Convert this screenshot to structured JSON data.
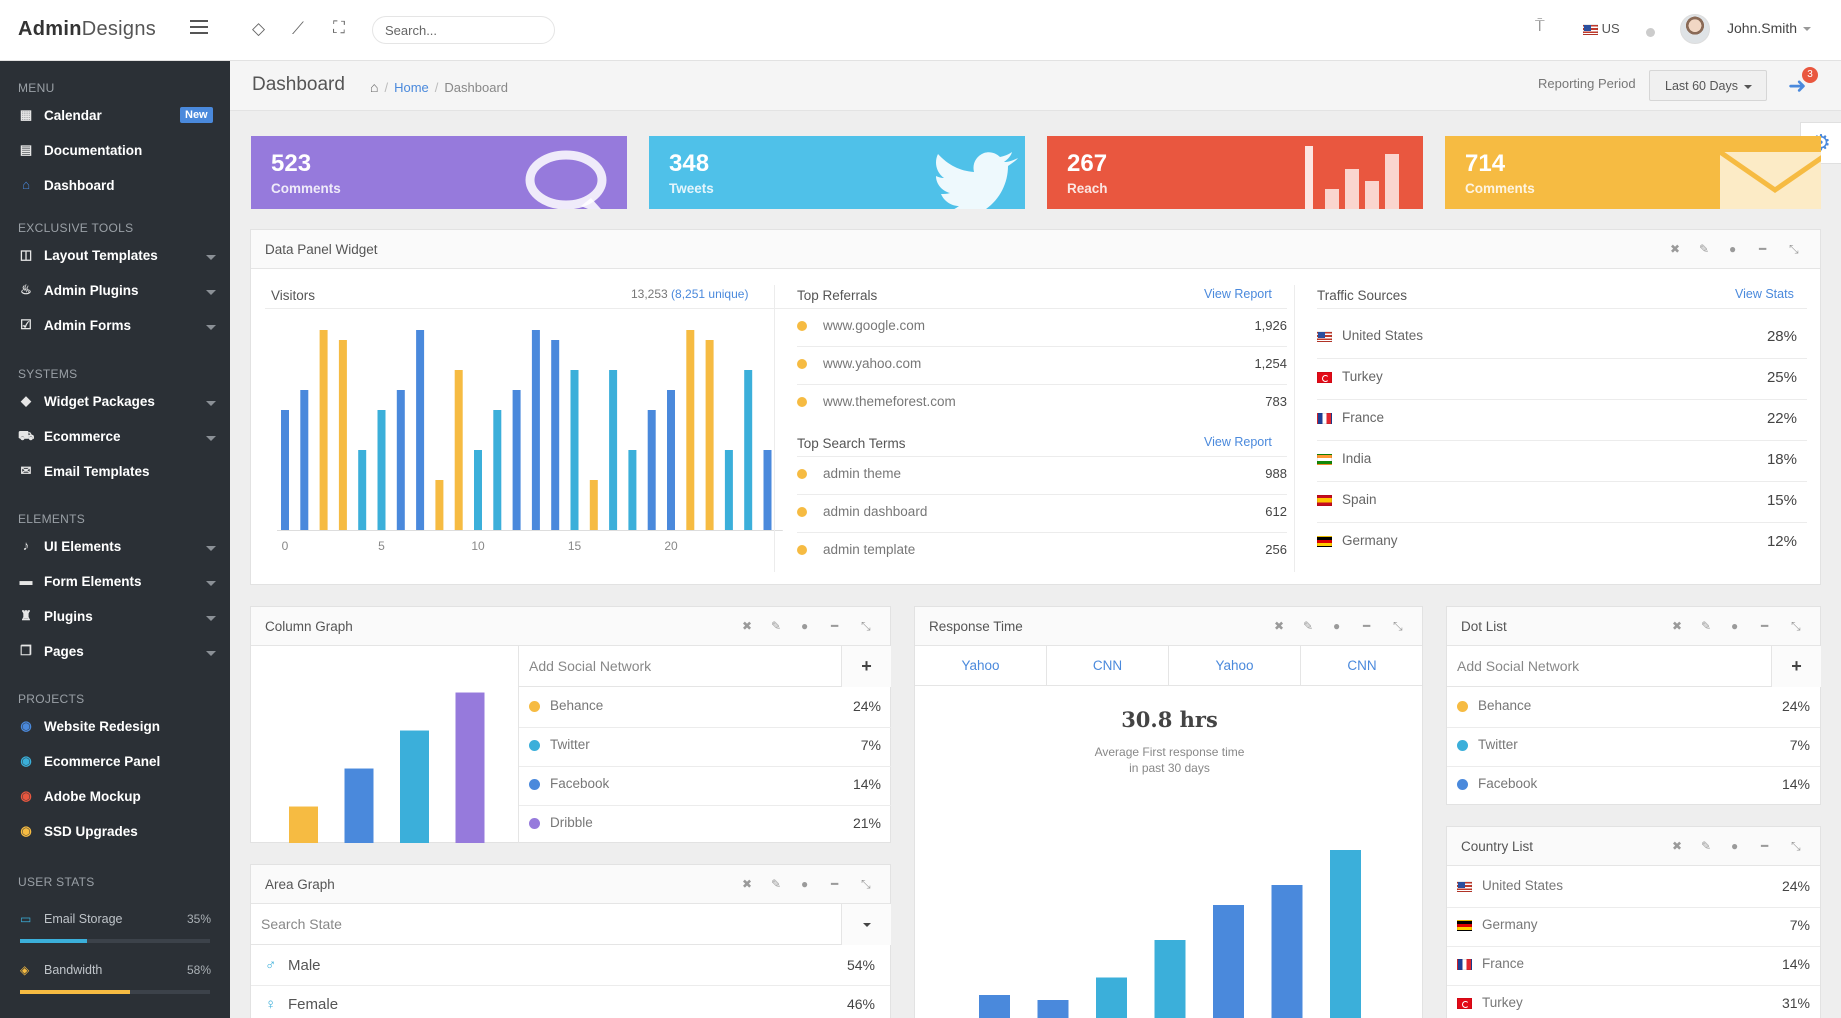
{
  "header": {
    "brand_strong": "Admin",
    "brand_rest": "Designs",
    "search_placeholder": "Search...",
    "language": "US",
    "username": "John.Smith"
  },
  "sidebar": {
    "sections": {
      "menu": "MENU",
      "exclusive": "EXCLUSIVE TOOLS",
      "systems": "SYSTEMS",
      "elements": "ELEMENTS",
      "projects": "PROJECTS",
      "user_stats": "USER STATS"
    },
    "menu": [
      {
        "label": "Calendar",
        "icon": "calendar-icon",
        "badge": "New"
      },
      {
        "label": "Documentation",
        "icon": "book-icon"
      },
      {
        "label": "Dashboard",
        "icon": "home-icon"
      }
    ],
    "exclusive": [
      {
        "label": "Layout Templates",
        "icon": "columns-icon"
      },
      {
        "label": "Admin Plugins",
        "icon": "fire-icon"
      },
      {
        "label": "Admin Forms",
        "icon": "check-square-icon"
      }
    ],
    "systems": [
      {
        "label": "Widget Packages",
        "icon": "diamond-icon"
      },
      {
        "label": "Ecommerce",
        "icon": "cart-icon"
      },
      {
        "label": "Email Templates",
        "icon": "envelope-icon"
      }
    ],
    "elements": [
      {
        "label": "UI Elements",
        "icon": "bell-icon"
      },
      {
        "label": "Form Elements",
        "icon": "hdd-icon"
      },
      {
        "label": "Plugins",
        "icon": "chess-icon"
      },
      {
        "label": "Pages",
        "icon": "files-icon"
      }
    ],
    "projects": [
      {
        "label": "Website Redesign",
        "color": "#4a89dc"
      },
      {
        "label": "Ecommerce Panel",
        "color": "#3bafda"
      },
      {
        "label": "Adobe Mockup",
        "color": "#e9573f"
      },
      {
        "label": "SSD Upgrades",
        "color": "#f6bb42"
      }
    ],
    "stats": [
      {
        "label": "Email Storage",
        "pct": "35%",
        "value": 0.35,
        "color": "#3bafda",
        "icon": "inbox-icon"
      },
      {
        "label": "Bandwidth",
        "pct": "58%",
        "value": 0.58,
        "color": "#f6bb42",
        "icon": "shield-icon"
      }
    ]
  },
  "topbar": {
    "title": "Dashboard",
    "crumb_home": "Home",
    "crumb_current": "Dashboard",
    "reporting_label": "Reporting Period",
    "reporting_value": "Last 60 Days",
    "notif_count": "3"
  },
  "tiles": [
    {
      "num": "523",
      "label": "Comments",
      "color": "#967adc",
      "icon": "comment-bubble-icon"
    },
    {
      "num": "348",
      "label": "Tweets",
      "color": "#4fc1e9",
      "icon": "twitter-bird-icon"
    },
    {
      "num": "267",
      "label": "Reach",
      "color": "#e9573f",
      "icon": "bar-chart-icon"
    },
    {
      "num": "714",
      "label": "Comments",
      "color": "#f6bb42",
      "icon": "envelope-icon"
    }
  ],
  "data_panel": {
    "title": "Data Panel Widget",
    "visitors_label": "Visitors",
    "visitors_total": "13,253",
    "visitors_unique": "(8,251 unique)",
    "referrals_title": "Top Referrals",
    "referrals_link": "View Report",
    "referrals": [
      {
        "site": "www.google.com",
        "value": "1,926"
      },
      {
        "site": "www.yahoo.com",
        "value": "1,254"
      },
      {
        "site": "www.themeforest.com",
        "value": "783"
      }
    ],
    "search_title": "Top Search Terms",
    "search_link": "View Report",
    "search_terms": [
      {
        "term": "admin theme",
        "value": "988"
      },
      {
        "term": "admin dashboard",
        "value": "612"
      },
      {
        "term": "admin template",
        "value": "256"
      }
    ],
    "traffic_title": "Traffic Sources",
    "traffic_link": "View Stats",
    "traffic": [
      {
        "country": "United States",
        "pct": "28%",
        "flag": "f-us"
      },
      {
        "country": "Turkey",
        "pct": "25%",
        "flag": "f-tr"
      },
      {
        "country": "France",
        "pct": "22%",
        "flag": "f-fr"
      },
      {
        "country": "India",
        "pct": "18%",
        "flag": "f-in"
      },
      {
        "country": "Spain",
        "pct": "15%",
        "flag": "f-es"
      },
      {
        "country": "Germany",
        "pct": "12%",
        "flag": "f-de"
      }
    ]
  },
  "chart_data": [
    {
      "type": "bar",
      "x_ticks": [
        "0",
        "5",
        "10",
        "15",
        "20"
      ],
      "ylim": [
        0,
        10
      ],
      "values": [
        6,
        7,
        10,
        9.5,
        4,
        6,
        7,
        10,
        2.5,
        8,
        4,
        6,
        7,
        10,
        9.5,
        8,
        2.5,
        8,
        4,
        6,
        7,
        10,
        9.5,
        4,
        8,
        4
      ],
      "colors": [
        "#4a89dc",
        "#4a89dc",
        "#f6bb42",
        "#f6bb42",
        "#3bafda",
        "#3bafda",
        "#4a89dc",
        "#4a89dc",
        "#f6bb42",
        "#f6bb42",
        "#3bafda",
        "#3bafda",
        "#4a89dc",
        "#4a89dc",
        "#4a89dc",
        "#3bafda",
        "#f6bb42",
        "#3bafda",
        "#3bafda",
        "#4a89dc",
        "#4a89dc",
        "#f6bb42",
        "#f6bb42",
        "#3bafda",
        "#3bafda",
        "#4a89dc"
      ]
    },
    {
      "type": "bar",
      "values": [
        24,
        49,
        74,
        99
      ],
      "ylim": [
        0,
        100
      ],
      "colors": [
        "#f6bb42",
        "#4a89dc",
        "#3bafda",
        "#967adc"
      ]
    },
    {
      "type": "bar",
      "values": [
        12,
        10,
        19,
        34,
        48,
        56,
        70
      ],
      "ylim": [
        0,
        80
      ],
      "colors": [
        "#4a89dc",
        "#4a89dc",
        "#3bafda",
        "#3bafda",
        "#4a89dc",
        "#4a89dc",
        "#3bafda"
      ]
    }
  ],
  "column_graph": {
    "title": "Column Graph",
    "add_placeholder": "Add Social Network",
    "items": [
      {
        "name": "Behance",
        "pct": "24%",
        "color": "#f6bb42"
      },
      {
        "name": "Twitter",
        "pct": "7%",
        "color": "#3bafda"
      },
      {
        "name": "Facebook",
        "pct": "14%",
        "color": "#4a89dc"
      },
      {
        "name": "Dribble",
        "pct": "21%",
        "color": "#967adc"
      }
    ]
  },
  "area_graph": {
    "title": "Area Graph",
    "search_placeholder": "Search State",
    "items": [
      {
        "name": "Male",
        "pct": "54%"
      },
      {
        "name": "Female",
        "pct": "46%"
      }
    ]
  },
  "response_time": {
    "title": "Response Time",
    "tabs": [
      "Yahoo",
      "CNN",
      "Yahoo",
      "CNN"
    ],
    "value": "30.8 hrs",
    "desc1": "Average First response time",
    "desc2": "in past 30 days"
  },
  "dot_list": {
    "title": "Dot List",
    "add_placeholder": "Add Social Network",
    "items": [
      {
        "name": "Behance",
        "pct": "24%",
        "color": "#f6bb42"
      },
      {
        "name": "Twitter",
        "pct": "7%",
        "color": "#3bafda"
      },
      {
        "name": "Facebook",
        "pct": "14%",
        "color": "#4a89dc"
      }
    ]
  },
  "country_list": {
    "title": "Country List",
    "items": [
      {
        "country": "United States",
        "pct": "24%",
        "flag": "f-us"
      },
      {
        "country": "Germany",
        "pct": "7%",
        "flag": "f-de"
      },
      {
        "country": "France",
        "pct": "14%",
        "flag": "f-fr"
      },
      {
        "country": "Turkey",
        "pct": "31%",
        "flag": "f-tr"
      }
    ]
  }
}
